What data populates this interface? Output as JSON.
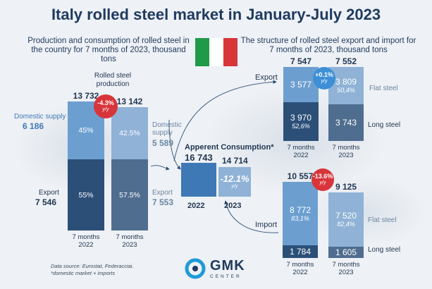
{
  "title": "Italy rolled steel market in January-July 2023",
  "left_subtitle": "Production and consumption of rolled steel in the country for 7 months of 2023, thousand tons",
  "right_subtitle": "The structure of rolled steel export and import for 7 months of 2023, thousand tons",
  "flag_colors": [
    "#1f9a48",
    "#ffffff",
    "#d8353a"
  ],
  "colors": {
    "light_blue": "#6c9fd0",
    "mid_blue": "#8fb2d6",
    "dark_navy": "#2c4f78",
    "slate": "#4f6d8f",
    "accent_blue": "#3e79b5",
    "badge_red": "#d8353a",
    "badge_blue": "#3d8fd6"
  },
  "chart_data": [
    {
      "type": "bar",
      "stacked": true,
      "title": "Rolled steel production",
      "categories": [
        "7 months 2022",
        "7 months 2023"
      ],
      "category_lines": [
        [
          "7 months",
          "2022"
        ],
        [
          "7 months",
          "2023"
        ]
      ],
      "totals": [
        "13 732",
        "13 142"
      ],
      "total_values": [
        13732,
        13142
      ],
      "series": [
        {
          "name": "Domestic supply",
          "values": [
            6186,
            5589
          ],
          "labels": [
            "6 186",
            "5 589"
          ],
          "shares": [
            "45%",
            "42.5%"
          ]
        },
        {
          "name": "Export",
          "values": [
            7546,
            7553
          ],
          "labels": [
            "7 546",
            "7 553"
          ],
          "shares": [
            "55%",
            "57.5%"
          ]
        }
      ],
      "change_badge": {
        "value": "-4.3%",
        "unit": "y/y"
      }
    },
    {
      "type": "bar",
      "title": "Apperent Consumption*",
      "categories": [
        "2022",
        "2023"
      ],
      "values": [
        16743,
        14714
      ],
      "labels": [
        "16 743",
        "14 714"
      ],
      "change": {
        "value": "-12.1%",
        "unit": "y/y"
      }
    },
    {
      "type": "bar",
      "stacked": true,
      "title": "Export",
      "categories": [
        "7 months 2022",
        "7 months 2023"
      ],
      "category_lines": [
        [
          "7 months",
          "2022"
        ],
        [
          "7 months",
          "2023"
        ]
      ],
      "totals": [
        "7 547",
        "7 552"
      ],
      "total_values": [
        7547,
        7552
      ],
      "series": [
        {
          "name": "Flat steel",
          "values": [
            3577,
            3809
          ],
          "labels": [
            "3 577",
            "3 809"
          ],
          "shares": [
            "",
            "50,4%"
          ]
        },
        {
          "name": "Long steel",
          "values": [
            3970,
            3743
          ],
          "labels": [
            "3 970",
            "3 743"
          ],
          "shares": [
            "52,6%",
            ""
          ]
        }
      ],
      "change_badge": {
        "value": "+0.1%",
        "unit": "y/y"
      }
    },
    {
      "type": "bar",
      "stacked": true,
      "title": "Import",
      "categories": [
        "7 months 2022",
        "7 months 2023"
      ],
      "category_lines": [
        [
          "7 months",
          "2022"
        ],
        [
          "7 months",
          "2023"
        ]
      ],
      "totals": [
        "10 557",
        "9 125"
      ],
      "total_values": [
        10557,
        9125
      ],
      "series": [
        {
          "name": "Flat steel",
          "values": [
            8772,
            7520
          ],
          "labels": [
            "8 772",
            "7 520"
          ],
          "shares": [
            "83,1%",
            "82,4%"
          ]
        },
        {
          "name": "Long steel",
          "values": [
            1784,
            1605
          ],
          "labels": [
            "1 784",
            "1 605"
          ],
          "shares": [
            "",
            ""
          ]
        }
      ],
      "change_badge": {
        "value": "-13.6%",
        "unit": "y/y"
      }
    }
  ],
  "source": [
    "Data source: Eurostat, Federacciai.",
    "*domestic market + imports"
  ],
  "logo": {
    "text": "GMK",
    "sub": "CENTER"
  }
}
